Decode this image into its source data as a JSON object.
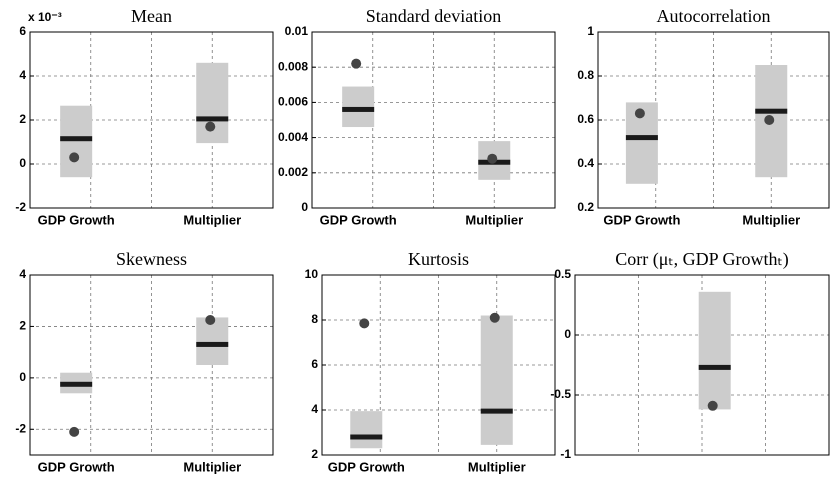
{
  "chart_data": [
    {
      "type": "range",
      "title": "Mean",
      "scale_label": "x 10⁻³",
      "categories": [
        "GDP Growth",
        "Multiplier"
      ],
      "series": [
        {
          "name": "low",
          "values": [
            -0.6,
            0.95
          ]
        },
        {
          "name": "high",
          "values": [
            2.65,
            4.6
          ]
        },
        {
          "name": "median",
          "values": [
            1.15,
            2.05
          ]
        },
        {
          "name": "point",
          "values": [
            0.3,
            1.7
          ]
        }
      ],
      "ylim": [
        -2,
        6
      ],
      "yticks": [
        -2,
        0,
        2,
        4,
        6
      ],
      "grid": true,
      "box_color": "#cccccc",
      "median_color": "#1a1a1a",
      "point_color": "#444444"
    },
    {
      "type": "range",
      "title": "Standard deviation",
      "categories": [
        "GDP Growth",
        "Multiplier"
      ],
      "series": [
        {
          "name": "low",
          "values": [
            0.0046,
            0.0016
          ]
        },
        {
          "name": "high",
          "values": [
            0.0069,
            0.0038
          ]
        },
        {
          "name": "median",
          "values": [
            0.0056,
            0.0026
          ]
        },
        {
          "name": "point",
          "values": [
            0.0082,
            0.0028
          ]
        }
      ],
      "ylim": [
        0,
        0.01
      ],
      "yticks": [
        0,
        0.002,
        0.004,
        0.006,
        0.008,
        0.01
      ],
      "grid": true,
      "box_color": "#cccccc",
      "median_color": "#1a1a1a",
      "point_color": "#444444"
    },
    {
      "type": "range",
      "title": "Autocorrelation",
      "categories": [
        "GDP Growth",
        "Multiplier"
      ],
      "series": [
        {
          "name": "low",
          "values": [
            0.31,
            0.34
          ]
        },
        {
          "name": "high",
          "values": [
            0.68,
            0.85
          ]
        },
        {
          "name": "median",
          "values": [
            0.52,
            0.64
          ]
        },
        {
          "name": "point",
          "values": [
            0.63,
            0.6
          ]
        }
      ],
      "ylim": [
        0.2,
        1
      ],
      "yticks": [
        0.2,
        0.4,
        0.6,
        0.8,
        1
      ],
      "grid": true,
      "box_color": "#cccccc",
      "median_color": "#1a1a1a",
      "point_color": "#444444"
    },
    {
      "type": "range",
      "title": "Skewness",
      "categories": [
        "GDP Growth",
        "Multiplier"
      ],
      "series": [
        {
          "name": "low",
          "values": [
            -0.6,
            0.5
          ]
        },
        {
          "name": "high",
          "values": [
            0.2,
            2.35
          ]
        },
        {
          "name": "median",
          "values": [
            -0.25,
            1.3
          ]
        },
        {
          "name": "point",
          "values": [
            -2.1,
            2.25
          ]
        }
      ],
      "ylim": [
        -3,
        4
      ],
      "yticks": [
        -2,
        0,
        2,
        4
      ],
      "grid": true,
      "box_color": "#cccccc",
      "median_color": "#1a1a1a",
      "point_color": "#444444"
    },
    {
      "type": "range",
      "title": "Kurtosis",
      "categories": [
        "GDP Growth",
        "Multiplier"
      ],
      "series": [
        {
          "name": "low",
          "values": [
            2.3,
            2.45
          ]
        },
        {
          "name": "high",
          "values": [
            3.95,
            8.2
          ]
        },
        {
          "name": "median",
          "values": [
            2.8,
            3.95
          ]
        },
        {
          "name": "point",
          "values": [
            7.85,
            8.1
          ]
        }
      ],
      "ylim": [
        2,
        10
      ],
      "yticks": [
        2,
        4,
        6,
        8,
        10
      ],
      "grid": true,
      "box_color": "#cccccc",
      "median_color": "#1a1a1a",
      "point_color": "#444444"
    },
    {
      "type": "range",
      "title": "Corr (μₜ, GDP Growthₜ)",
      "categories": [
        null
      ],
      "series": [
        {
          "name": "low",
          "values": [
            -0.62
          ]
        },
        {
          "name": "high",
          "values": [
            0.36
          ]
        },
        {
          "name": "median",
          "values": [
            -0.27
          ]
        },
        {
          "name": "point",
          "values": [
            -0.59
          ]
        }
      ],
      "ylim": [
        -1,
        0.5
      ],
      "yticks": [
        -1,
        -0.5,
        0,
        0.5
      ],
      "grid": true,
      "box_color": "#cccccc",
      "median_color": "#1a1a1a",
      "point_color": "#444444"
    }
  ]
}
